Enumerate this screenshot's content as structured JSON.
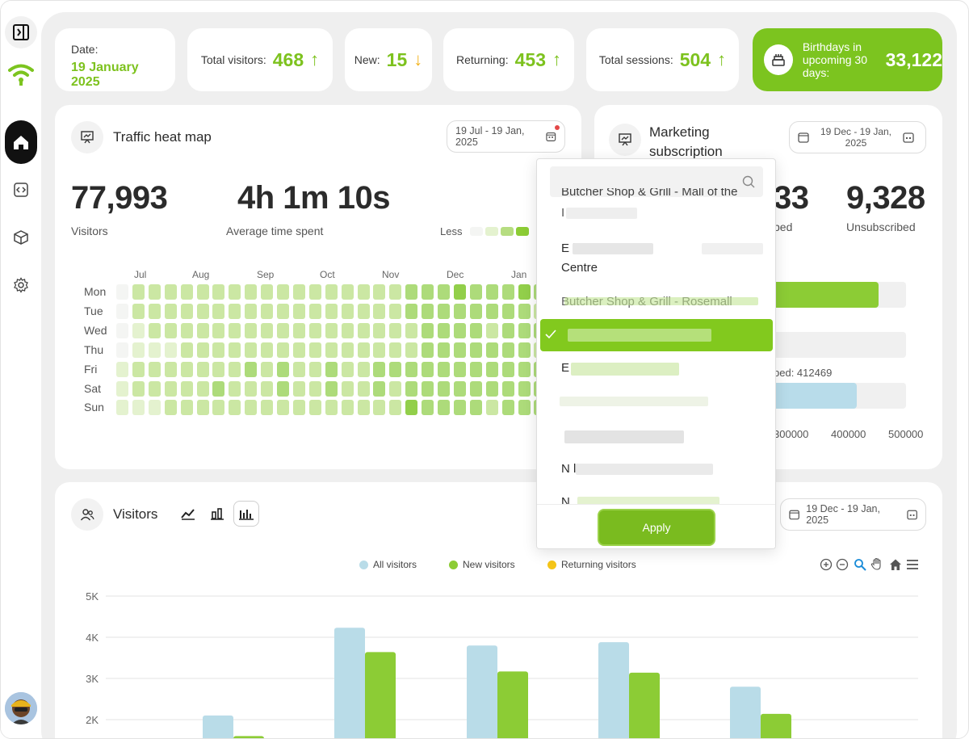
{
  "stats": {
    "date_label": "Date:",
    "date_value": "19 January 2025",
    "total_visitors_label": "Total visitors:",
    "total_visitors_value": "468",
    "new_label": "New:",
    "new_value": "15",
    "returning_label": "Returning:",
    "returning_value": "453",
    "sessions_label": "Total sessions:",
    "sessions_value": "504",
    "birthdays_label": "Birthdays in upcoming 30 days:",
    "birthdays_value": "33,122",
    "arrow_up": "↑",
    "arrow_down": "↓"
  },
  "heatmap": {
    "title": "Traffic heat map",
    "date_range": "19 Jul - 19 Jan, 2025",
    "visitors_value": "77,993",
    "visitors_label": "Visitors",
    "avg_time_value": "4h 1m 10s",
    "avg_time_label": "Average time spent",
    "legend_less": "Less",
    "months": [
      "Jul",
      "Aug",
      "Sep",
      "Oct",
      "Nov",
      "Dec",
      "Jan"
    ],
    "days": [
      "Mon",
      "Tue",
      "Wed",
      "Thu",
      "Fri",
      "Sat",
      "Sun"
    ],
    "colors": [
      "#f4f5f3",
      "#e4f2cf",
      "#cbe7a3",
      "#add b7a",
      "#92cf4a"
    ],
    "levels": [
      [
        0,
        2,
        2,
        2,
        2,
        2,
        2,
        2,
        2,
        2,
        2,
        2,
        2,
        2,
        2,
        2,
        2,
        2,
        3,
        3,
        3,
        4,
        3,
        3,
        3,
        4,
        3
      ],
      [
        0,
        2,
        2,
        2,
        2,
        2,
        2,
        2,
        2,
        2,
        2,
        2,
        2,
        2,
        2,
        2,
        2,
        2,
        3,
        3,
        3,
        3,
        3,
        3,
        3,
        3,
        2
      ],
      [
        0,
        1,
        2,
        2,
        2,
        2,
        2,
        2,
        2,
        2,
        2,
        2,
        2,
        2,
        2,
        2,
        2,
        2,
        2,
        3,
        3,
        3,
        3,
        2,
        3,
        3,
        3
      ],
      [
        0,
        1,
        1,
        1,
        2,
        2,
        2,
        2,
        2,
        2,
        2,
        2,
        2,
        2,
        2,
        2,
        2,
        2,
        2,
        3,
        3,
        3,
        3,
        3,
        3,
        3,
        2
      ],
      [
        1,
        2,
        2,
        2,
        2,
        2,
        2,
        2,
        3,
        2,
        3,
        2,
        2,
        3,
        2,
        2,
        3,
        3,
        3,
        3,
        3,
        3,
        3,
        3,
        3,
        3,
        3
      ],
      [
        1,
        2,
        2,
        2,
        2,
        2,
        3,
        2,
        2,
        2,
        3,
        2,
        2,
        3,
        2,
        2,
        3,
        2,
        3,
        3,
        3,
        3,
        3,
        3,
        3,
        3,
        3
      ],
      [
        1,
        1,
        1,
        2,
        2,
        2,
        2,
        2,
        2,
        2,
        2,
        2,
        2,
        2,
        2,
        2,
        2,
        2,
        4,
        3,
        3,
        3,
        3,
        2,
        3,
        3,
        3
      ]
    ]
  },
  "marketing": {
    "title_line1": "Marketing",
    "title_line2": "subscription",
    "date_range": "19 Dec - 19 Jan, 2025",
    "subscribed_value_partial": "33",
    "subscribed_label_partial": "bed",
    "unsubscribed_value": "9,328",
    "unsubscribed_label": "Unsubscribed",
    "partial_total_label": "bed: 412469",
    "axis_ticks": [
      "300000",
      "400000",
      "500000"
    ]
  },
  "visitors_chart": {
    "title": "Visitors",
    "date_range": "19 Dec - 19 Jan, 2025"
  },
  "chart_data": {
    "type": "bar",
    "categories": [
      "",
      "",
      "",
      "",
      ""
    ],
    "series": [
      {
        "name": "All visitors",
        "color": "#b9dce8",
        "values": [
          2100,
          4230,
          3800,
          3880,
          2800
        ]
      },
      {
        "name": "New visitors",
        "color": "#8ccc35",
        "values": [
          1600,
          3640,
          3170,
          3140,
          2140
        ]
      },
      {
        "name": "Returning visitors",
        "color": "#f5c518",
        "values": [
          0,
          0,
          0,
          0,
          0
        ]
      }
    ],
    "y_ticks": [
      "5K",
      "4K",
      "3K",
      "2K"
    ],
    "ylim": [
      1500,
      5000
    ],
    "grid": true,
    "legend": "top-center"
  },
  "dropdown": {
    "items": [
      {
        "text": "Butcher Shop & Grill - Mall of the"
      },
      {
        "text": "E                     l - M"
      },
      {
        "text": "Centre"
      },
      {
        "text": "Butcher Shop & Grill - Rosemall"
      },
      {
        "text": ""
      },
      {
        "text": "E"
      },
      {
        "text": ""
      },
      {
        "text": ""
      },
      {
        "text": "N                                          ll"
      },
      {
        "text": "N"
      }
    ],
    "apply_label": "Apply"
  }
}
